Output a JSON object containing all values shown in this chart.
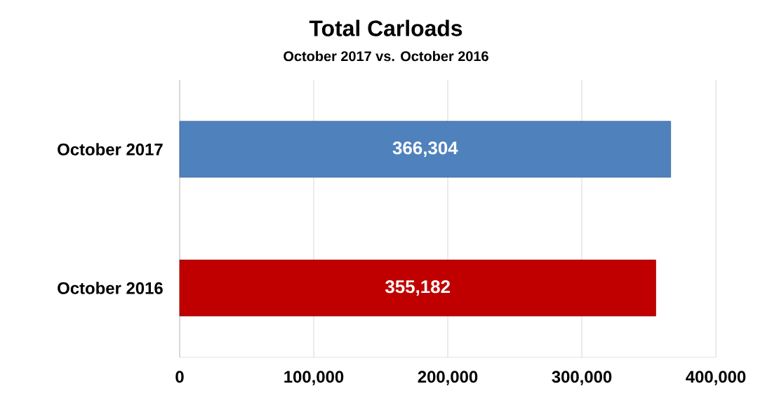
{
  "chart_data": {
    "type": "bar",
    "orientation": "horizontal",
    "title": "Total Carloads",
    "subtitle": "October 2017 vs. October 2016",
    "categories": [
      "October 2017",
      "October 2016"
    ],
    "values": [
      366304,
      355182
    ],
    "colors": [
      "#4f81bd",
      "#c00000"
    ],
    "value_labels": [
      "366,304",
      "355,182"
    ],
    "xlim": [
      0,
      400000
    ],
    "xticks": [
      {
        "value": 0,
        "label": "0"
      },
      {
        "value": 100000,
        "label": "100,000"
      },
      {
        "value": 200000,
        "label": "200,000"
      },
      {
        "value": 300000,
        "label": "300,000"
      },
      {
        "value": 400000,
        "label": "400,000"
      }
    ],
    "grid": "x"
  }
}
